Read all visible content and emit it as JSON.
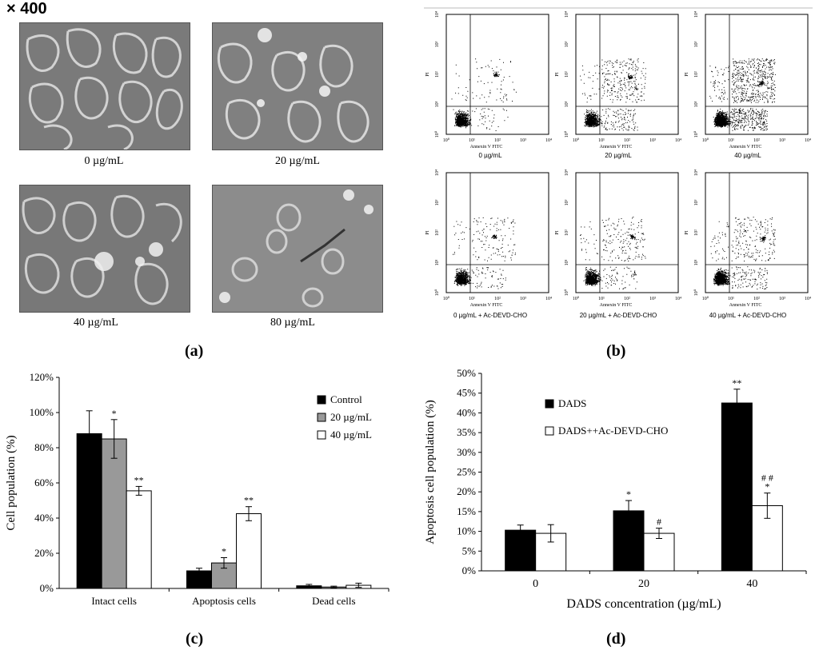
{
  "panel_a": {
    "magnification": "× 400",
    "images": [
      {
        "caption": "0 µg/mL",
        "tone": "#7a7a7a"
      },
      {
        "caption": "20  µg/mL",
        "tone": "#808080"
      },
      {
        "caption": "40  µg/mL",
        "tone": "#787878"
      },
      {
        "caption": "80  µg/mL",
        "tone": "#8c8c8c"
      }
    ],
    "label": "(a)"
  },
  "panel_b": {
    "label": "(b)",
    "y_axis": "PI",
    "x_axis": "Annexin V  FITC",
    "tick_labels": [
      "10⁰",
      "10¹",
      "10²",
      "10³",
      "10⁴"
    ],
    "plots": [
      {
        "caption": "0 µg/mL"
      },
      {
        "caption": "20 µg/mL"
      },
      {
        "caption": "40 µg/mL"
      },
      {
        "caption": "0 µg/mL + Ac-DEVD-CHO"
      },
      {
        "caption": "20 µg/mL + Ac-DEVD-CHO"
      },
      {
        "caption": "40 µg/mL + Ac-DEVD-CHO"
      }
    ]
  },
  "chart_data": [
    {
      "panel": "(c)",
      "type": "bar",
      "ylabel": "Cell population (%)",
      "ylim": [
        0,
        120
      ],
      "yticks": [
        "0%",
        "20%",
        "40%",
        "60%",
        "80%",
        "100%",
        "120%"
      ],
      "categories": [
        "Intact cells",
        "Apoptosis cells",
        "Dead cells"
      ],
      "series": [
        {
          "name": "Control",
          "color": "#000000",
          "values": [
            88,
            10,
            1.5
          ],
          "errors": [
            13,
            1.5,
            0.8
          ],
          "marks": [
            "",
            "",
            ""
          ]
        },
        {
          "name": "20 µg/mL",
          "color": "#999999",
          "values": [
            85,
            14.5,
            0.8
          ],
          "errors": [
            11,
            3,
            0.5
          ],
          "marks": [
            "*",
            "*",
            ""
          ]
        },
        {
          "name": "40 µg/mL",
          "color": "#ffffff",
          "values": [
            55.5,
            42.5,
            1.8
          ],
          "errors": [
            2.5,
            4,
            1.2
          ],
          "marks": [
            "**",
            "**",
            ""
          ]
        }
      ],
      "legend_position": "top-right"
    },
    {
      "panel": "(d)",
      "type": "bar",
      "xlabel": "DADS concentration  (µg/mL)",
      "ylabel": "Apoptosis cell population (%)",
      "ylim": [
        0,
        50
      ],
      "yticks": [
        "0%",
        "5%",
        "10%",
        "15%",
        "20%",
        "25%",
        "30%",
        "35%",
        "40%",
        "45%",
        "50%"
      ],
      "categories": [
        "0",
        "20",
        "40"
      ],
      "series": [
        {
          "name": "DADS",
          "color": "#000000",
          "values": [
            10.3,
            15.2,
            42.5
          ],
          "errors": [
            1.3,
            2.6,
            3.5
          ],
          "marks": [
            "",
            "*",
            "**"
          ]
        },
        {
          "name": "DADS++Ac-DEVD-CHO",
          "color": "#ffffff",
          "values": [
            9.5,
            9.5,
            16.5
          ],
          "errors": [
            2.2,
            1.3,
            3.2
          ],
          "marks": [
            "",
            "#",
            "# #\n*"
          ]
        }
      ],
      "legend_position": "top-left"
    }
  ]
}
